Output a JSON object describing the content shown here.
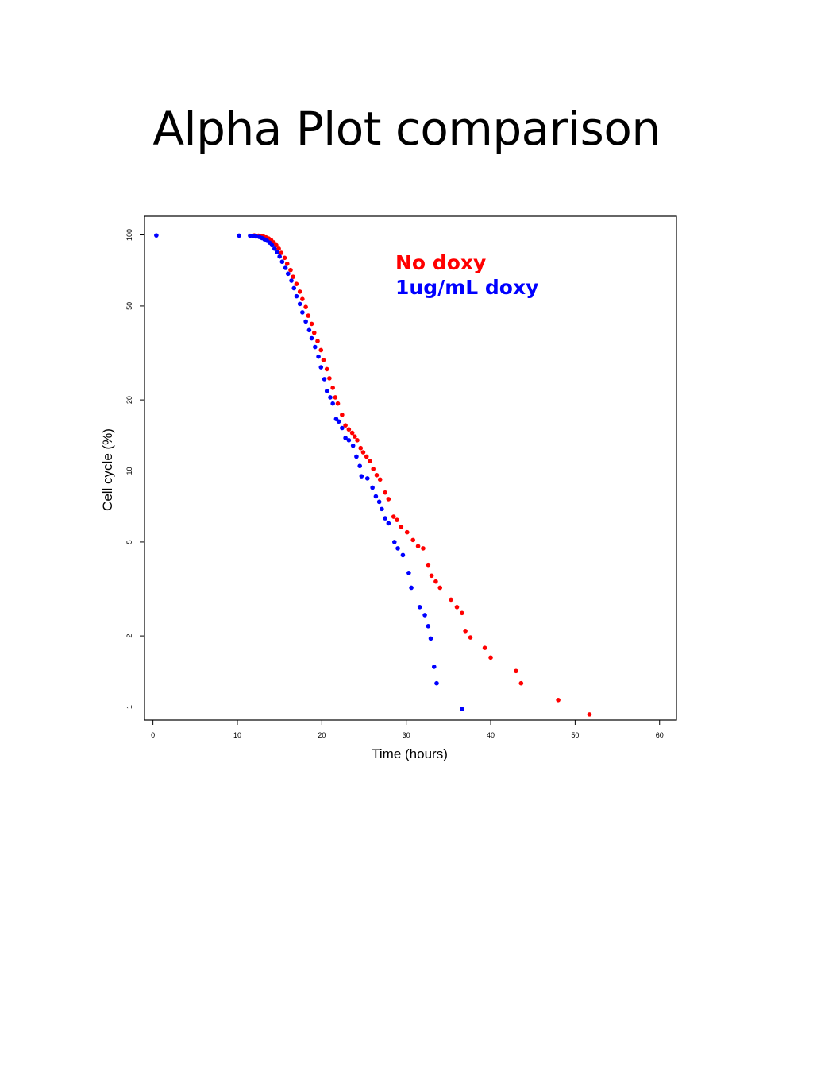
{
  "slide": {
    "title": "Alpha Plot comparison"
  },
  "chart_data": {
    "type": "scatter",
    "title": "",
    "xlabel": "Time (hours)",
    "ylabel": "Cell cycle (%)",
    "xlim": [
      -1,
      62
    ],
    "ylim": [
      0.88,
      120
    ],
    "y_scale": "log",
    "x_ticks": [
      0,
      10,
      20,
      30,
      40,
      50,
      60
    ],
    "y_ticks": [
      1,
      2,
      5,
      10,
      20,
      50,
      100
    ],
    "grid": false,
    "legend_position": "top-right",
    "series": [
      {
        "name": "No doxy",
        "color": "#ff0000",
        "points": [
          [
            12.0,
            99.5
          ],
          [
            12.5,
            99.2
          ],
          [
            12.8,
            98.8
          ],
          [
            13.1,
            98.3
          ],
          [
            13.4,
            97.6
          ],
          [
            13.7,
            96.5
          ],
          [
            14.0,
            95.0
          ],
          [
            14.3,
            93.0
          ],
          [
            14.6,
            90.5
          ],
          [
            14.9,
            87.5
          ],
          [
            15.2,
            84.0
          ],
          [
            15.6,
            80.0
          ],
          [
            15.9,
            75.5
          ],
          [
            16.3,
            71.0
          ],
          [
            16.6,
            66.5
          ],
          [
            17.0,
            62.0
          ],
          [
            17.4,
            57.5
          ],
          [
            17.7,
            53.5
          ],
          [
            18.1,
            49.5
          ],
          [
            18.4,
            45.5
          ],
          [
            18.8,
            42.0
          ],
          [
            19.1,
            38.5
          ],
          [
            19.5,
            35.5
          ],
          [
            19.9,
            32.5
          ],
          [
            20.2,
            29.5
          ],
          [
            20.6,
            27.0
          ],
          [
            20.9,
            24.7
          ],
          [
            21.3,
            22.5
          ],
          [
            21.6,
            20.5
          ],
          [
            21.9,
            19.3
          ],
          [
            22.4,
            17.3
          ],
          [
            22.8,
            15.6
          ],
          [
            23.2,
            15.0
          ],
          [
            23.6,
            14.5
          ],
          [
            23.9,
            14.0
          ],
          [
            24.2,
            13.5
          ],
          [
            24.6,
            12.5
          ],
          [
            24.9,
            12.0
          ],
          [
            25.3,
            11.5
          ],
          [
            25.7,
            11.0
          ],
          [
            26.1,
            10.2
          ],
          [
            26.5,
            9.6
          ],
          [
            26.9,
            9.2
          ],
          [
            27.5,
            8.1
          ],
          [
            27.9,
            7.6
          ],
          [
            28.5,
            6.4
          ],
          [
            28.9,
            6.2
          ],
          [
            29.4,
            5.8
          ],
          [
            30.1,
            5.5
          ],
          [
            30.8,
            5.1
          ],
          [
            31.4,
            4.8
          ],
          [
            32.0,
            4.7
          ],
          [
            32.6,
            4.0
          ],
          [
            33.0,
            3.6
          ],
          [
            33.5,
            3.4
          ],
          [
            34.0,
            3.2
          ],
          [
            35.3,
            2.85
          ],
          [
            36.0,
            2.65
          ],
          [
            36.6,
            2.5
          ],
          [
            37.0,
            2.1
          ],
          [
            37.6,
            1.97
          ],
          [
            39.3,
            1.78
          ],
          [
            40.0,
            1.62
          ],
          [
            43.0,
            1.42
          ],
          [
            43.6,
            1.26
          ],
          [
            48.0,
            1.07
          ],
          [
            51.7,
            0.93
          ]
        ]
      },
      {
        "name": "1ug/mL doxy",
        "color": "#0000ff",
        "points": [
          [
            0.4,
            99.5
          ],
          [
            10.2,
            99.3
          ],
          [
            11.5,
            99.1
          ],
          [
            11.9,
            98.8
          ],
          [
            12.2,
            98.5
          ],
          [
            12.6,
            98.0
          ],
          [
            12.9,
            97.0
          ],
          [
            13.2,
            95.8
          ],
          [
            13.5,
            94.5
          ],
          [
            13.8,
            92.8
          ],
          [
            14.1,
            90.5
          ],
          [
            14.4,
            87.5
          ],
          [
            14.7,
            84.5
          ],
          [
            15.0,
            81.0
          ],
          [
            15.3,
            77.0
          ],
          [
            15.7,
            72.5
          ],
          [
            16.0,
            68.5
          ],
          [
            16.4,
            64.0
          ],
          [
            16.7,
            59.5
          ],
          [
            17.0,
            55.0
          ],
          [
            17.4,
            51.0
          ],
          [
            17.7,
            47.0
          ],
          [
            18.1,
            43.0
          ],
          [
            18.5,
            39.5
          ],
          [
            18.8,
            36.5
          ],
          [
            19.2,
            33.5
          ],
          [
            19.6,
            30.5
          ],
          [
            19.9,
            27.5
          ],
          [
            20.3,
            24.5
          ],
          [
            20.6,
            21.8
          ],
          [
            21.0,
            20.5
          ],
          [
            21.3,
            19.3
          ],
          [
            21.7,
            16.6
          ],
          [
            22.0,
            16.2
          ],
          [
            22.4,
            15.2
          ],
          [
            22.8,
            13.8
          ],
          [
            23.2,
            13.5
          ],
          [
            23.7,
            12.8
          ],
          [
            24.1,
            11.5
          ],
          [
            24.5,
            10.5
          ],
          [
            24.7,
            9.5
          ],
          [
            25.4,
            9.3
          ],
          [
            26.0,
            8.5
          ],
          [
            26.4,
            7.8
          ],
          [
            26.8,
            7.4
          ],
          [
            27.1,
            6.9
          ],
          [
            27.5,
            6.3
          ],
          [
            27.9,
            6.0
          ],
          [
            28.6,
            5.0
          ],
          [
            29.0,
            4.7
          ],
          [
            29.6,
            4.4
          ],
          [
            30.3,
            3.7
          ],
          [
            30.6,
            3.2
          ],
          [
            31.6,
            2.65
          ],
          [
            32.2,
            2.45
          ],
          [
            32.6,
            2.2
          ],
          [
            32.9,
            1.95
          ],
          [
            33.3,
            1.48
          ],
          [
            33.6,
            1.26
          ],
          [
            36.6,
            0.98
          ]
        ]
      }
    ]
  }
}
